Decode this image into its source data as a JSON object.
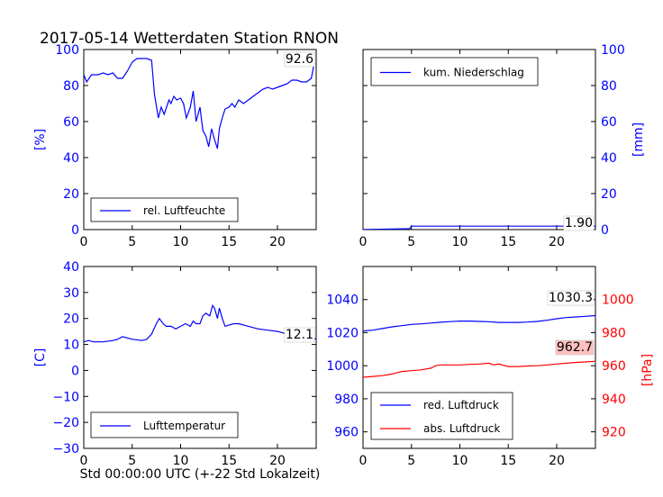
{
  "title": "2017-05-14 Wetterdaten Station RNON",
  "xlabel": "Std 00:00:00 UTC (+-22 Std Lokalzeit)",
  "colors": {
    "blue": "#0000ff",
    "red": "#ff0000",
    "highlight": "#ffc0c0"
  },
  "chart_data": [
    {
      "type": "line",
      "panel": "top-left",
      "xlim": [
        0,
        24
      ],
      "ylim": [
        0,
        100
      ],
      "xticks": [
        "0",
        "5",
        "10",
        "15",
        "20"
      ],
      "yticks": [
        "0",
        "20",
        "40",
        "60",
        "80",
        "100"
      ],
      "ylabel": "[%]",
      "legend_placement": "lower-left",
      "annotation": "92.6",
      "series": [
        {
          "name": "rel. Luftfeuchte",
          "color": "#0000ff",
          "x": [
            0,
            0.3,
            0.8,
            1.5,
            2,
            2.5,
            3,
            3.5,
            4,
            4.5,
            5,
            5.5,
            6,
            6.5,
            7,
            7.3,
            7.7,
            8,
            8.3,
            8.8,
            9,
            9.3,
            9.6,
            10,
            10.3,
            10.6,
            11,
            11.3,
            11.6,
            12,
            12.3,
            12.6,
            12.9,
            13.2,
            13.5,
            13.8,
            14,
            14.3,
            14.6,
            15,
            15.3,
            15.6,
            16,
            16.5,
            17,
            17.5,
            18,
            18.5,
            19,
            19.5,
            20,
            20.5,
            21,
            21.5,
            22,
            22.5,
            23,
            23.5,
            23.8
          ],
          "y": [
            86,
            82,
            86,
            86,
            87,
            86,
            87,
            84,
            84,
            88,
            93,
            95,
            95,
            95,
            94,
            75,
            62,
            68,
            64,
            72,
            70,
            74,
            72,
            73,
            70,
            62,
            68,
            77,
            60,
            68,
            55,
            52,
            46,
            56,
            50,
            45,
            56,
            62,
            67,
            68,
            70,
            68,
            72,
            70,
            72,
            74,
            76,
            78,
            79,
            78,
            79,
            80,
            81,
            83,
            83,
            82,
            82,
            84,
            92.6
          ]
        }
      ]
    },
    {
      "type": "line",
      "panel": "top-right",
      "xlim": [
        0,
        24
      ],
      "ylim": [
        0,
        100
      ],
      "xticks": [
        "0",
        "5",
        "10",
        "15",
        "20"
      ],
      "yticks": [
        "0",
        "20",
        "40",
        "60",
        "80",
        "100"
      ],
      "ylabel": "[mm]",
      "legend_placement": "upper-left",
      "annotation": "1.90",
      "series": [
        {
          "name": "kum. Niederschlag",
          "color": "#0000ff",
          "x": [
            0,
            4.8,
            5,
            24
          ],
          "y": [
            0,
            0.5,
            1.9,
            1.9
          ]
        }
      ]
    },
    {
      "type": "line",
      "panel": "bottom-left",
      "xlim": [
        0,
        24
      ],
      "ylim": [
        -30,
        40
      ],
      "xticks": [
        "0",
        "5",
        "10",
        "15",
        "20"
      ],
      "yticks": [
        "−30",
        "−20",
        "−10",
        "0",
        "10",
        "20",
        "30",
        "40"
      ],
      "ylabel": "[C]",
      "legend_placement": "lower-left",
      "annotation": "12.1",
      "series": [
        {
          "name": "Lufttemperatur",
          "color": "#0000ff",
          "x": [
            0,
            0.5,
            1,
            2,
            3,
            3.5,
            4,
            5,
            6,
            6.5,
            7,
            7.5,
            7.8,
            8.2,
            8.5,
            9,
            9.5,
            10,
            10.5,
            11,
            11.3,
            11.6,
            12,
            12.3,
            12.6,
            13,
            13.3,
            13.5,
            13.8,
            14,
            14.3,
            14.6,
            15,
            15.5,
            16,
            17,
            18,
            19,
            20,
            21,
            22,
            23,
            24
          ],
          "y": [
            11,
            11.5,
            11,
            11,
            11.5,
            12,
            13,
            12,
            11.5,
            12,
            14,
            18,
            20,
            18,
            17,
            17,
            16,
            17,
            18,
            17,
            19,
            18,
            18,
            21,
            22,
            21,
            25,
            24,
            20,
            24,
            20,
            17,
            17.5,
            18,
            18,
            17,
            16,
            15.5,
            15,
            14,
            13,
            12.5,
            12.1
          ]
        }
      ]
    },
    {
      "type": "line",
      "panel": "bottom-right",
      "xlim": [
        0,
        24
      ],
      "ylim": [
        950,
        1060
      ],
      "xticks": [
        "0",
        "5",
        "10",
        "15",
        "20"
      ],
      "yticks": [
        "960",
        "980",
        "1000",
        "1020",
        "1040"
      ],
      "y2lim": [
        910,
        1020
      ],
      "y2ticks": [
        "920",
        "940",
        "960",
        "980",
        "1000"
      ],
      "y2label": "[hPa]",
      "legend_placement": "lower-left",
      "annotation": "1030.3",
      "annotation2": "962.7",
      "series": [
        {
          "name": "red. Luftdruck",
          "color": "#0000ff",
          "axis": "left",
          "x": [
            0,
            1,
            2,
            3,
            4,
            5,
            6,
            7,
            8,
            9,
            10,
            11,
            12,
            13,
            14,
            15,
            16,
            17,
            18,
            19,
            20,
            21,
            22,
            23,
            24
          ],
          "y": [
            1021,
            1021.5,
            1022.5,
            1023.5,
            1024.2,
            1025,
            1025.3,
            1025.8,
            1026.3,
            1026.7,
            1027,
            1027,
            1026.8,
            1026.6,
            1026.2,
            1026.2,
            1026.2,
            1026.4,
            1026.8,
            1027.5,
            1028.4,
            1029.1,
            1029.5,
            1029.9,
            1030.3
          ]
        },
        {
          "name": "abs. Luftdruck",
          "color": "#ff0000",
          "axis": "right",
          "x": [
            0,
            1,
            2,
            3,
            4,
            5,
            6,
            7,
            7.5,
            8,
            9,
            10,
            11,
            12,
            13,
            13.5,
            14,
            15,
            16,
            17,
            18,
            19,
            20,
            21,
            22,
            23,
            24
          ],
          "y": [
            953,
            953.5,
            954,
            955,
            956.5,
            957,
            957.5,
            958.5,
            960,
            960.5,
            960.5,
            960.5,
            960.8,
            961,
            961.5,
            960.5,
            961,
            959.5,
            959.5,
            959.8,
            960,
            960.5,
            961,
            961.5,
            962,
            962.3,
            962.7
          ]
        }
      ]
    }
  ]
}
